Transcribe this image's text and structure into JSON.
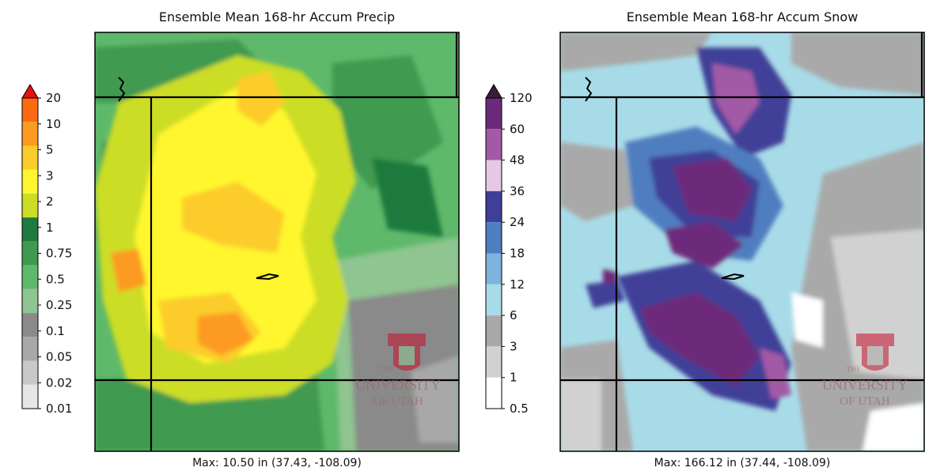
{
  "left_panel": {
    "title": "Ensemble Mean 168-hr Accum Precip",
    "footer": "Max: 10.50 in (37.43, -108.09)",
    "colorbar": {
      "levels": [
        "20",
        "10",
        "5",
        "3",
        "2",
        "1",
        "0.75",
        "0.5",
        "0.25",
        "0.1",
        "0.05",
        "0.02",
        "0.01"
      ],
      "colors": [
        "#fc6a10",
        "#fd9a20",
        "#fccc2a",
        "#fff62e",
        "#ccdd26",
        "#1e7a3e",
        "#3f9a50",
        "#5fb96a",
        "#8fc590",
        "#8a8a8a",
        "#a8a8a8",
        "#c8c8c8",
        "#e6e6e6"
      ],
      "extend_color": "#e81010"
    },
    "watermark": {
      "the": "THE",
      "university": "UNIVERSITY",
      "of_utah": "OF UTAH"
    }
  },
  "right_panel": {
    "title": "Ensemble Mean 168-hr Accum Snow",
    "footer": "Max: 166.12 in (37.44, -108.09)",
    "colorbar": {
      "levels": [
        "120",
        "60",
        "48",
        "36",
        "24",
        "18",
        "12",
        "6",
        "3",
        "1",
        "0.5"
      ],
      "colors": [
        "#6d2a7a",
        "#a35aa6",
        "#e4c8e4",
        "#3f3f98",
        "#4f7ec0",
        "#7db3dc",
        "#a8dbe8",
        "#a9a9a9",
        "#d1d1d1",
        "#ffffff"
      ],
      "extend_color": "#3a1d35"
    },
    "watermark": {
      "the": "THE",
      "university": "UNIVERSITY",
      "of_utah": "OF UTAH"
    }
  }
}
